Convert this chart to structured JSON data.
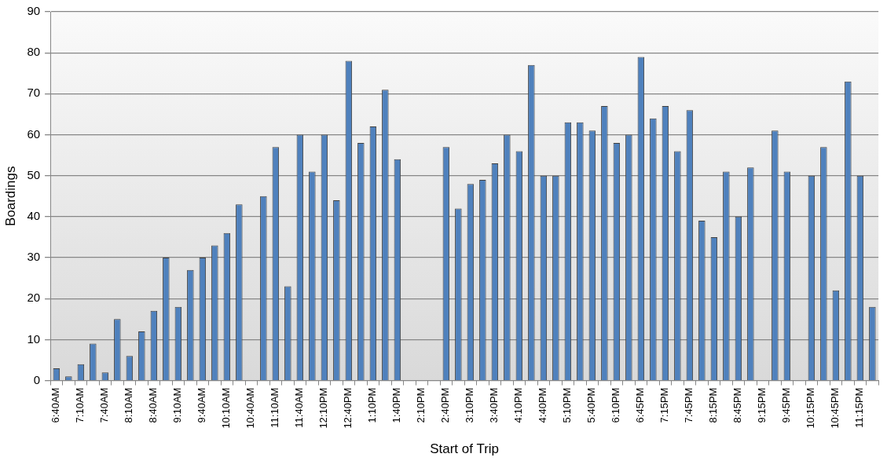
{
  "chart_data": {
    "type": "bar",
    "xlabel": "Start of Trip",
    "ylabel": "Boardings",
    "categories": [
      "6:40AM",
      null,
      "7:10AM",
      null,
      "7:40AM",
      null,
      "8:10AM",
      null,
      "8:40AM",
      null,
      "9:10AM",
      null,
      "9:40AM",
      null,
      "10:10AM",
      null,
      "10:40AM",
      null,
      "11:10AM",
      null,
      "11:40AM",
      null,
      "12:10PM",
      null,
      "12:40PM",
      null,
      "1:10PM",
      null,
      "1:40PM",
      null,
      "2:10PM",
      null,
      "2:40PM",
      null,
      "3:10PM",
      null,
      "3:40PM",
      null,
      "4:10PM",
      null,
      "4:40PM",
      null,
      "5:10PM",
      null,
      "5:40PM",
      null,
      "6:10PM",
      null,
      "6:45PM",
      null,
      "7:15PM",
      null,
      "7:45PM",
      null,
      "8:15PM",
      null,
      "8:45PM",
      null,
      "9:15PM",
      null,
      "9:45PM",
      null,
      "10:15PM",
      null,
      "10:45PM",
      null,
      "11:15PM",
      null
    ],
    "values": [
      3,
      1,
      4,
      9,
      2,
      15,
      6,
      12,
      17,
      30,
      18,
      27,
      30,
      33,
      36,
      43,
      null,
      45,
      57,
      23,
      60,
      51,
      60,
      44,
      78,
      58,
      62,
      71,
      54,
      null,
      null,
      null,
      57,
      42,
      48,
      49,
      53,
      60,
      56,
      77,
      50,
      50,
      63,
      63,
      61,
      67,
      58,
      60,
      79,
      64,
      67,
      56,
      66,
      39,
      35,
      51,
      40,
      52,
      null,
      61,
      51,
      null,
      50,
      57,
      22,
      73,
      50,
      18
    ],
    "color": "#4f81bd",
    "ylim": [
      0,
      90
    ],
    "yticks": [
      0,
      10,
      20,
      30,
      40,
      50,
      60,
      70,
      80,
      90
    ],
    "grid": "y",
    "legend": false
  }
}
